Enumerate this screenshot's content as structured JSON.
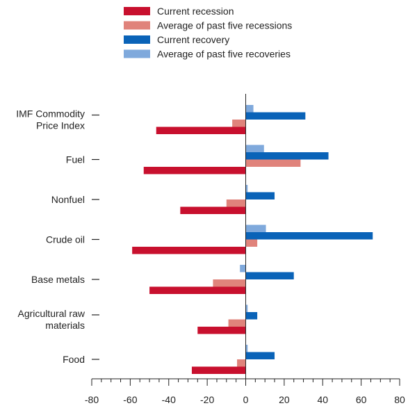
{
  "chart_data": {
    "type": "bar",
    "orientation": "horizontal",
    "categories": [
      [
        "IMF Commodity",
        "Price Index"
      ],
      [
        "Fuel"
      ],
      [
        "Nonfuel"
      ],
      [
        "Crude oil"
      ],
      [
        "Base metals"
      ],
      [
        "Agricultural raw",
        "materials"
      ],
      [
        "Food"
      ]
    ],
    "series": [
      {
        "name": "Average of past five recoveries",
        "color": "#7fa9dc",
        "values": [
          4,
          9.5,
          1,
          10.5,
          -3,
          1,
          1
        ]
      },
      {
        "name": "Current recovery",
        "color": "#0a63b8",
        "values": [
          31,
          43,
          15,
          66,
          25,
          6,
          15
        ]
      },
      {
        "name": "Average of past five recessions",
        "color": "#e0837b",
        "values": [
          -7,
          28.5,
          -10,
          6,
          -17,
          -9,
          -4.5
        ]
      },
      {
        "name": "Current recession",
        "color": "#c8102e",
        "values": [
          -46.5,
          -53,
          -34,
          -59,
          -50,
          -25,
          -28
        ]
      }
    ],
    "legend_order": [
      3,
      2,
      1,
      0
    ],
    "xlim": [
      -80,
      80
    ],
    "xticks": [
      -80,
      -60,
      -40,
      -20,
      0,
      20,
      40,
      60,
      80
    ],
    "grid": false,
    "legend_position": "top"
  }
}
